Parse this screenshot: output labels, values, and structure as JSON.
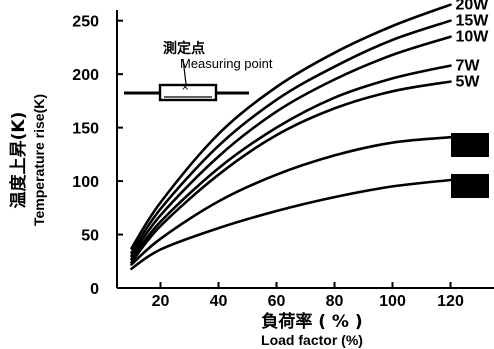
{
  "chart_data": {
    "type": "line",
    "xlabel": "負荷率 ( % )",
    "xlabel_en": "Load factor (%)",
    "ylabel": "温度上昇(K)",
    "ylabel_en": "Temperature rise(K)",
    "xlim": [
      5,
      135
    ],
    "ylim": [
      0,
      260
    ],
    "x_ticks": [
      20,
      40,
      60,
      80,
      100,
      120
    ],
    "y_ticks": [
      0,
      50,
      100,
      150,
      200,
      250
    ],
    "grid": false,
    "series": [
      {
        "name": "20W",
        "x": [
          10,
          20,
          40,
          60,
          80,
          100,
          120
        ],
        "y": [
          37,
          80,
          144,
          188,
          220,
          245,
          265
        ]
      },
      {
        "name": "15W",
        "x": [
          10,
          20,
          40,
          60,
          80,
          100,
          120
        ],
        "y": [
          33,
          74,
          133,
          176,
          207,
          232,
          250
        ]
      },
      {
        "name": "10W",
        "x": [
          10,
          20,
          40,
          60,
          80,
          100,
          120
        ],
        "y": [
          30,
          68,
          123,
          165,
          195,
          218,
          235
        ]
      },
      {
        "name": "7W",
        "x": [
          10,
          20,
          40,
          60,
          80,
          100,
          120
        ],
        "y": [
          27,
          62,
          112,
          150,
          178,
          196,
          208
        ]
      },
      {
        "name": "5W",
        "x": [
          10,
          20,
          40,
          60,
          80,
          100,
          120
        ],
        "y": [
          24,
          58,
          106,
          143,
          168,
          184,
          193
        ]
      },
      {
        "name": "",
        "x": [
          10,
          20,
          40,
          60,
          80,
          100,
          120
        ],
        "y": [
          22,
          46,
          81,
          106,
          124,
          136,
          141
        ]
      },
      {
        "name": "",
        "x": [
          10,
          20,
          40,
          60,
          80,
          100,
          120
        ],
        "y": [
          18,
          36,
          56,
          72,
          85,
          95,
          101
        ]
      }
    ],
    "inset": {
      "label_jp": "測定点",
      "label_en": "Measuring point"
    }
  }
}
